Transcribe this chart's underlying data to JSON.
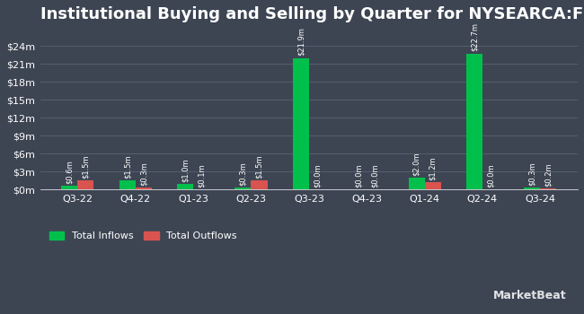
{
  "title": "Institutional Buying and Selling by Quarter for NYSEARCA:FIVA",
  "categories": [
    "Q3-22",
    "Q4-22",
    "Q1-23",
    "Q2-23",
    "Q3-23",
    "Q4-23",
    "Q1-24",
    "Q2-24",
    "Q3-24"
  ],
  "inflows": [
    0.6,
    1.5,
    1.0,
    0.3,
    21.9,
    0.0,
    2.0,
    22.7,
    0.3
  ],
  "outflows": [
    1.5,
    0.3,
    0.1,
    1.5,
    0.0,
    0.0,
    1.2,
    0.0,
    0.2
  ],
  "inflow_labels": [
    "$0.6m",
    "$1.5m",
    "$1.0m",
    "$0.3m",
    "$21.9m",
    "$0.0m",
    "$2.0m",
    "$22.7m",
    "$0.3m"
  ],
  "outflow_labels": [
    "$1.5m",
    "$0.3m",
    "$0.1m",
    "$1.5m",
    "$0.0m",
    "$0.0m",
    "$1.2m",
    "$0.0m",
    "$0.2m"
  ],
  "inflow_color": "#00c04b",
  "outflow_color": "#d9534f",
  "background_color": "#3d4553",
  "text_color": "#ffffff",
  "grid_color": "#555f6e",
  "yticks": [
    0,
    3,
    6,
    9,
    12,
    15,
    18,
    21,
    24
  ],
  "ytick_labels": [
    "$0m",
    "$3m",
    "$6m",
    "$9m",
    "$12m",
    "$15m",
    "$18m",
    "$21m",
    "$24m"
  ],
  "ylim": [
    0,
    26.5
  ],
  "bar_width": 0.28,
  "legend_labels": [
    "Total Inflows",
    "Total Outflows"
  ],
  "watermark": "MarketBeat",
  "title_fontsize": 13,
  "label_fontsize": 6.0,
  "tick_fontsize": 8,
  "legend_fontsize": 8
}
